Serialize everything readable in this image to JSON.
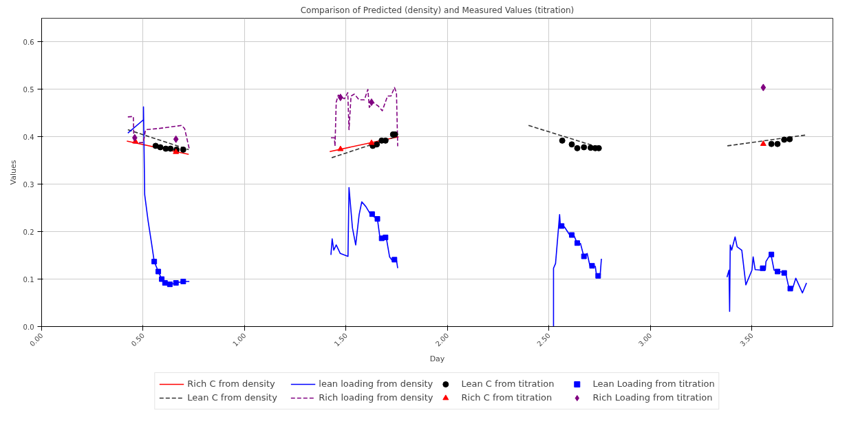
{
  "chart_data": {
    "type": "line",
    "title": "Comparison of Predicted (density) and Measured Values (titration)",
    "xlabel": "Day",
    "ylabel": "Values",
    "xlim": [
      0,
      3.9
    ],
    "ylim": [
      0,
      0.65
    ],
    "xticks": [
      {
        "value": 0,
        "label": "0.00"
      },
      {
        "value": 0.5,
        "label": "0.50"
      },
      {
        "value": 1,
        "label": "1.00"
      },
      {
        "value": 1.5,
        "label": "1.50"
      },
      {
        "value": 2,
        "label": "2.00"
      },
      {
        "value": 2.5,
        "label": "2.50"
      },
      {
        "value": 3,
        "label": "3.00"
      },
      {
        "value": 3.5,
        "label": "3.50"
      }
    ],
    "yticks": [
      {
        "value": 0,
        "label": "0.0"
      },
      0.1,
      0.2,
      0.3,
      0.4,
      0.5,
      0.6
    ],
    "grid": true,
    "legend": "bottom",
    "series": [
      {
        "name": "Rich C from density",
        "color": "#ff0000",
        "line_style": "solid",
        "x": [
          0.42,
          0.725,
          null,
          1.42,
          1.76
        ],
        "values": [
          0.391,
          0.363,
          null,
          0.369,
          0.4
        ]
      },
      {
        "name": "Lean C from density",
        "color": "#333333",
        "line_style": "dashed",
        "x": [
          0.425,
          0.725,
          null,
          1.43,
          1.75,
          null,
          2.4,
          2.76,
          null,
          3.38,
          3.77
        ],
        "values": [
          0.415,
          0.373,
          null,
          0.356,
          0.401,
          null,
          0.424,
          0.376,
          null,
          0.381,
          0.404
        ]
      },
      {
        "name": "lean loading from density",
        "color": "#0000ff",
        "line_style": "solid",
        "x": [
          0.425,
          0.502,
          0.502,
          0.508,
          0.525,
          0.542,
          0.555,
          0.575,
          0.592,
          0.608,
          0.632,
          0.662,
          0.698,
          0.728,
          null,
          1.426,
          1.432,
          1.44,
          1.452,
          1.472,
          1.51,
          1.515,
          1.532,
          1.548,
          1.565,
          1.578,
          1.598,
          1.622,
          1.655,
          1.668,
          1.698,
          1.715,
          1.732,
          1.749,
          1.755,
          null,
          2.523,
          2.523,
          2.533,
          2.553,
          2.557,
          2.577,
          2.603,
          2.623,
          2.64,
          2.656,
          2.673,
          2.689,
          2.703,
          2.729,
          2.736,
          2.753,
          2.759,
          null,
          3.378,
          3.388,
          3.391,
          3.394,
          3.401,
          3.418,
          3.428,
          3.451,
          3.471,
          3.501,
          3.507,
          3.517,
          3.544,
          3.567,
          3.57,
          3.594,
          3.61,
          3.634,
          3.667,
          3.684,
          3.7,
          3.717,
          3.75,
          3.77
        ],
        "values": [
          0.408,
          0.436,
          0.463,
          0.278,
          0.222,
          0.175,
          0.137,
          0.116,
          0.1,
          0.092,
          0.088,
          0.092,
          0.095,
          0.095,
          null,
          0.151,
          0.185,
          0.161,
          0.172,
          0.154,
          0.148,
          0.293,
          0.208,
          0.172,
          0.236,
          0.263,
          0.253,
          0.236,
          0.227,
          0.186,
          0.189,
          0.147,
          0.137,
          0.14,
          0.123,
          null,
          0.0,
          0.123,
          0.133,
          0.236,
          0.212,
          0.21,
          0.193,
          0.193,
          0.175,
          0.175,
          0.147,
          0.154,
          0.127,
          0.127,
          0.104,
          0.109,
          0.143,
          null,
          0.104,
          0.119,
          0.032,
          0.172,
          0.161,
          0.189,
          0.168,
          0.161,
          0.088,
          0.119,
          0.147,
          0.12,
          0.119,
          0.119,
          0.137,
          0.154,
          0.119,
          0.116,
          0.113,
          0.08,
          0.078,
          0.102,
          0.071,
          0.092
        ]
      },
      {
        "name": "Rich loading from density",
        "color": "#800080",
        "line_style": "dashed",
        "x": [
          0.425,
          0.452,
          0.455,
          0.502,
          0.512,
          0.585,
          0.691,
          0.705,
          0.728,
          null,
          1.426,
          1.443,
          1.446,
          1.452,
          1.462,
          1.492,
          1.509,
          1.515,
          1.525,
          1.541,
          1.565,
          1.591,
          1.608,
          1.615,
          1.632,
          1.659,
          1.679,
          1.705,
          1.722,
          1.739,
          1.749,
          1.755
        ],
        "values": [
          0.442,
          0.443,
          0.387,
          0.388,
          0.415,
          0.418,
          0.424,
          0.417,
          0.374,
          null,
          0.398,
          0.398,
          0.38,
          0.473,
          0.488,
          0.48,
          0.493,
          0.415,
          0.486,
          0.49,
          0.478,
          0.478,
          0.5,
          0.462,
          0.473,
          0.465,
          0.455,
          0.486,
          0.486,
          0.504,
          0.493,
          0.38
        ]
      },
      {
        "name": "Lean C from titration",
        "type": "scatter",
        "marker": "circle",
        "color": "#000000",
        "x": [
          0.562,
          0.585,
          0.612,
          0.635,
          0.665,
          0.698,
          1.632,
          1.652,
          1.676,
          1.695,
          1.732,
          1.742,
          2.566,
          2.613,
          2.64,
          2.673,
          2.706,
          2.729,
          2.746,
          3.597,
          3.627,
          3.66,
          3.687
        ],
        "values": [
          0.381,
          0.378,
          0.375,
          0.375,
          0.373,
          0.373,
          0.381,
          0.384,
          0.392,
          0.392,
          0.405,
          0.405,
          0.392,
          0.384,
          0.376,
          0.378,
          0.377,
          0.376,
          0.376,
          0.385,
          0.385,
          0.394,
          0.395
        ]
      },
      {
        "name": "Rich C from titration",
        "type": "scatter",
        "marker": "triangle",
        "color": "#ff0000",
        "x": [
          0.462,
          0.662,
          1.473,
          1.626,
          3.557
        ],
        "values": [
          0.39,
          0.368,
          0.374,
          0.387,
          0.385
        ]
      },
      {
        "name": "Lean Loading from titration",
        "type": "scatter",
        "marker": "square",
        "color": "#0000ff",
        "x": [
          0.555,
          0.575,
          0.592,
          0.608,
          0.632,
          0.662,
          0.698,
          1.629,
          1.655,
          1.676,
          1.695,
          1.739,
          2.563,
          2.613,
          2.64,
          2.673,
          2.713,
          2.743,
          3.554,
          3.597,
          3.627,
          3.66,
          3.69
        ],
        "values": [
          0.137,
          0.116,
          0.1,
          0.092,
          0.089,
          0.092,
          0.095,
          0.237,
          0.227,
          0.186,
          0.188,
          0.141,
          0.212,
          0.193,
          0.176,
          0.148,
          0.128,
          0.107,
          0.123,
          0.152,
          0.116,
          0.113,
          0.08
        ]
      },
      {
        "name": "Rich Loading from titration",
        "type": "scatter",
        "marker": "diamond",
        "color": "#800080",
        "x": [
          0.459,
          0.662,
          1.473,
          1.626,
          3.557
        ],
        "values": [
          0.398,
          0.395,
          0.483,
          0.473,
          0.504
        ]
      }
    ]
  }
}
